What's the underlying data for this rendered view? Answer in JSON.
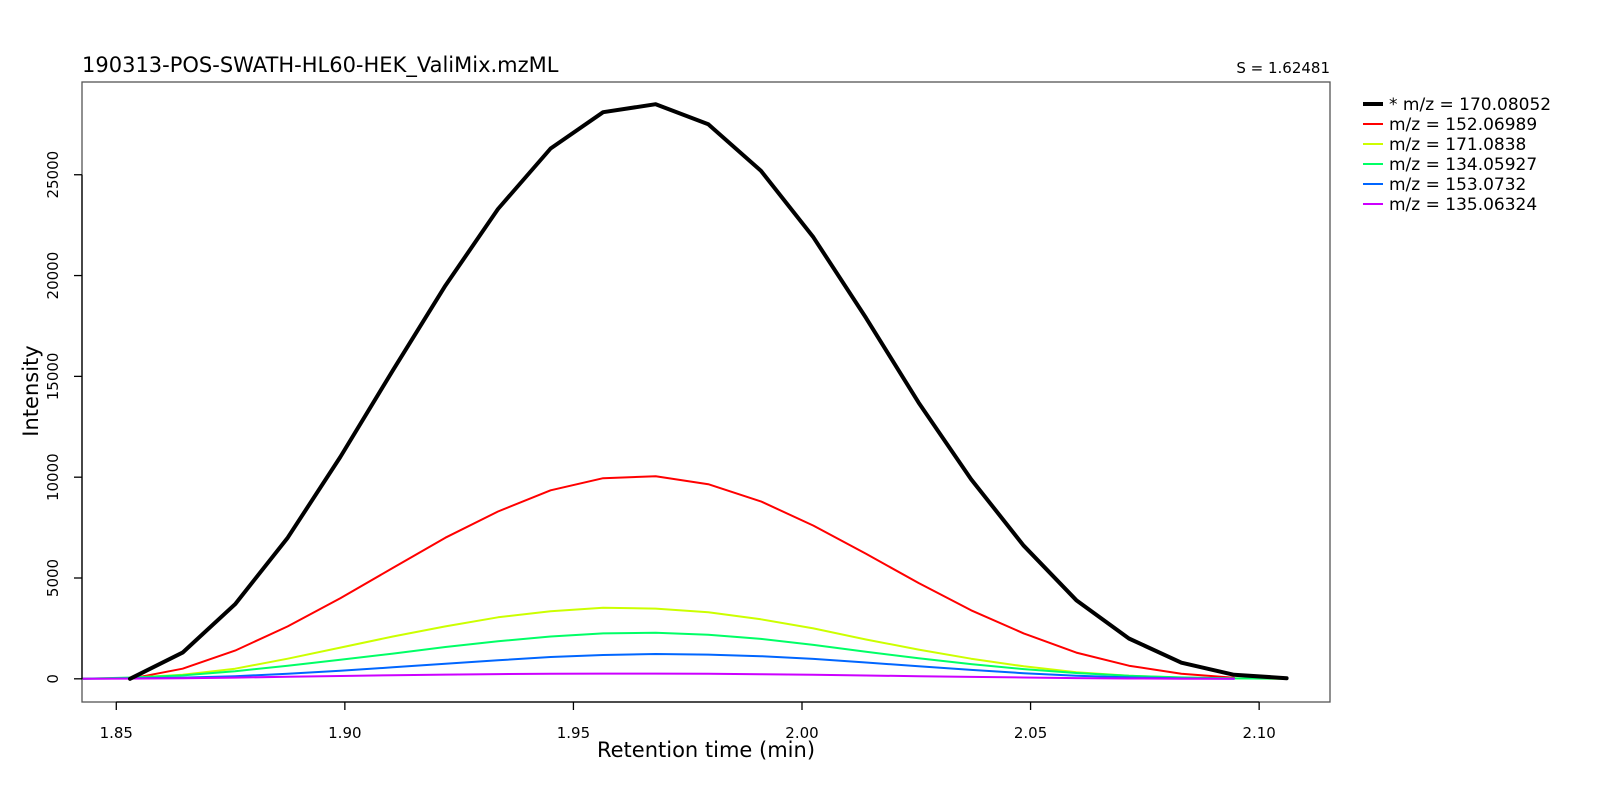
{
  "chart_data": {
    "type": "line",
    "title": "190313-POS-SWATH-HL60-HEK_ValiMix.mzML",
    "annotation": "S = 1.62481",
    "xlabel": "Retention time (min)",
    "ylabel": "Intensity",
    "xlim": [
      1.8425,
      2.1155
    ],
    "ylim": [
      -1150,
      29600
    ],
    "xticks": [
      1.85,
      1.9,
      1.95,
      2.0,
      2.05,
      2.1
    ],
    "xtick_labels": [
      "1.85",
      "1.90",
      "1.95",
      "2.00",
      "2.05",
      "2.10"
    ],
    "yticks": [
      0,
      5000,
      10000,
      15000,
      20000,
      25000
    ],
    "ytick_labels": [
      "0",
      "5000",
      "10000",
      "15000",
      "20000",
      "25000"
    ],
    "grid": false,
    "legend_position": "outside-top-right",
    "series": [
      {
        "name": "* m/z = 170.08052",
        "color": "#000000",
        "bold": true,
        "x": [
          1.853,
          1.8645,
          1.876,
          1.8875,
          1.899,
          1.9105,
          1.922,
          1.9335,
          1.945,
          1.9565,
          1.968,
          1.9795,
          1.991,
          2.0025,
          2.014,
          2.0255,
          2.037,
          2.0485,
          2.06,
          2.0715,
          2.083,
          2.0945,
          2.106
        ],
        "values": [
          0,
          1300,
          3700,
          7000,
          11000,
          15300,
          19500,
          23300,
          26300,
          28100,
          28500,
          27500,
          25200,
          21900,
          17900,
          13700,
          9900,
          6600,
          3900,
          2000,
          800,
          200,
          30
        ]
      },
      {
        "name": "m/z = 152.06989",
        "color": "#ff0000",
        "bold": false,
        "x": [
          1.853,
          1.8645,
          1.876,
          1.8875,
          1.899,
          1.9105,
          1.922,
          1.9335,
          1.945,
          1.9565,
          1.968,
          1.9795,
          1.991,
          2.0025,
          2.014,
          2.0255,
          2.037,
          2.0485,
          2.06,
          2.0715,
          2.083,
          2.0945
        ],
        "values": [
          0,
          500,
          1400,
          2600,
          4000,
          5500,
          7000,
          8300,
          9350,
          9950,
          10050,
          9650,
          8800,
          7600,
          6200,
          4750,
          3400,
          2250,
          1300,
          650,
          250,
          50
        ]
      },
      {
        "name": "m/z = 171.0838",
        "color": "#ccff00",
        "bold": false,
        "x": [
          1.8425,
          1.853,
          1.8645,
          1.876,
          1.8875,
          1.899,
          1.9105,
          1.922,
          1.9335,
          1.945,
          1.9565,
          1.968,
          1.9795,
          1.991,
          2.0025,
          2.014,
          2.0255,
          2.037,
          2.0485,
          2.06,
          2.0715,
          2.083,
          2.0945,
          2.106
        ],
        "values": [
          0,
          50,
          200,
          500,
          1000,
          1550,
          2100,
          2600,
          3050,
          3350,
          3520,
          3480,
          3300,
          2950,
          2500,
          1950,
          1450,
          1000,
          620,
          330,
          150,
          60,
          20,
          0
        ]
      },
      {
        "name": "m/z = 134.05927",
        "color": "#00ff66",
        "bold": false,
        "x": [
          1.8425,
          1.853,
          1.8645,
          1.876,
          1.8875,
          1.899,
          1.9105,
          1.922,
          1.9335,
          1.945,
          1.9565,
          1.968,
          1.9795,
          1.991,
          2.0025,
          2.014,
          2.0255,
          2.037,
          2.0485,
          2.06,
          2.0715,
          2.083,
          2.0945,
          2.106
        ],
        "values": [
          0,
          60,
          170,
          380,
          650,
          950,
          1250,
          1580,
          1860,
          2100,
          2250,
          2280,
          2190,
          1980,
          1680,
          1340,
          1020,
          730,
          480,
          290,
          150,
          70,
          20,
          0
        ]
      },
      {
        "name": "m/z = 153.0732",
        "color": "#0066ff",
        "bold": false,
        "x": [
          1.8425,
          1.853,
          1.8645,
          1.876,
          1.8875,
          1.899,
          1.9105,
          1.922,
          1.9335,
          1.945,
          1.9565,
          1.968,
          1.9795,
          1.991,
          2.0025,
          2.014,
          2.0255,
          2.037,
          2.0485,
          2.06,
          2.0715,
          2.083,
          2.0945
        ],
        "values": [
          0,
          20,
          60,
          130,
          250,
          400,
          570,
          750,
          920,
          1080,
          1180,
          1230,
          1200,
          1120,
          990,
          810,
          620,
          440,
          280,
          150,
          70,
          20,
          0
        ]
      },
      {
        "name": "m/z = 135.06324",
        "color": "#cc00ff",
        "bold": false,
        "x": [
          1.8425,
          1.853,
          1.8645,
          1.876,
          1.8875,
          1.899,
          1.9105,
          1.922,
          1.9335,
          1.945,
          1.9565,
          1.968,
          1.9795,
          1.991,
          2.0025,
          2.014,
          2.0255,
          2.037,
          2.0485,
          2.06,
          2.0715,
          2.083,
          2.0945
        ],
        "values": [
          0,
          10,
          30,
          60,
          100,
          140,
          180,
          210,
          235,
          250,
          260,
          260,
          250,
          230,
          200,
          165,
          130,
          95,
          65,
          35,
          15,
          5,
          0
        ]
      }
    ]
  }
}
